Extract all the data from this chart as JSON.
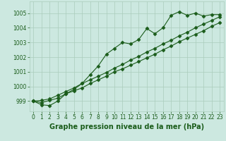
{
  "xlabel": "Graphe pression niveau de la mer (hPa)",
  "background_color": "#cce8e0",
  "grid_color": "#aaccbb",
  "line_color": "#1a5c1a",
  "x_ticks": [
    0,
    1,
    2,
    3,
    4,
    5,
    6,
    7,
    8,
    9,
    10,
    11,
    12,
    13,
    14,
    15,
    16,
    17,
    18,
    19,
    20,
    21,
    22,
    23
  ],
  "ylim": [
    998.3,
    1005.8
  ],
  "xlim": [
    -0.5,
    23.5
  ],
  "yticks": [
    999,
    1000,
    1001,
    1002,
    1003,
    1004,
    1005
  ],
  "series1": [
    999.0,
    998.75,
    998.7,
    999.0,
    999.5,
    999.8,
    1000.2,
    1000.8,
    1001.4,
    1002.2,
    1002.6,
    1003.0,
    1002.9,
    1003.2,
    1003.95,
    1003.6,
    1004.0,
    1004.85,
    1005.1,
    1004.85,
    1005.0,
    1004.8,
    1004.9,
    1004.9
  ],
  "series2": [
    999.0,
    998.9,
    999.05,
    999.2,
    999.5,
    999.7,
    999.9,
    1000.2,
    1000.45,
    1000.7,
    1001.0,
    1001.2,
    1001.45,
    1001.7,
    1001.95,
    1002.2,
    1002.5,
    1002.75,
    1003.05,
    1003.3,
    1003.55,
    1003.8,
    1004.1,
    1004.35
  ],
  "series3": [
    999.0,
    999.05,
    999.15,
    999.4,
    999.65,
    999.9,
    1000.2,
    1000.45,
    1000.7,
    1000.95,
    1001.25,
    1001.5,
    1001.8,
    1002.05,
    1002.35,
    1002.6,
    1002.9,
    1003.15,
    1003.45,
    1003.7,
    1004.0,
    1004.25,
    1004.5,
    1004.75
  ],
  "marker": "D",
  "marker_size": 2.5,
  "linewidth": 0.8,
  "xlabel_fontsize": 7,
  "tick_fontsize": 5.5
}
